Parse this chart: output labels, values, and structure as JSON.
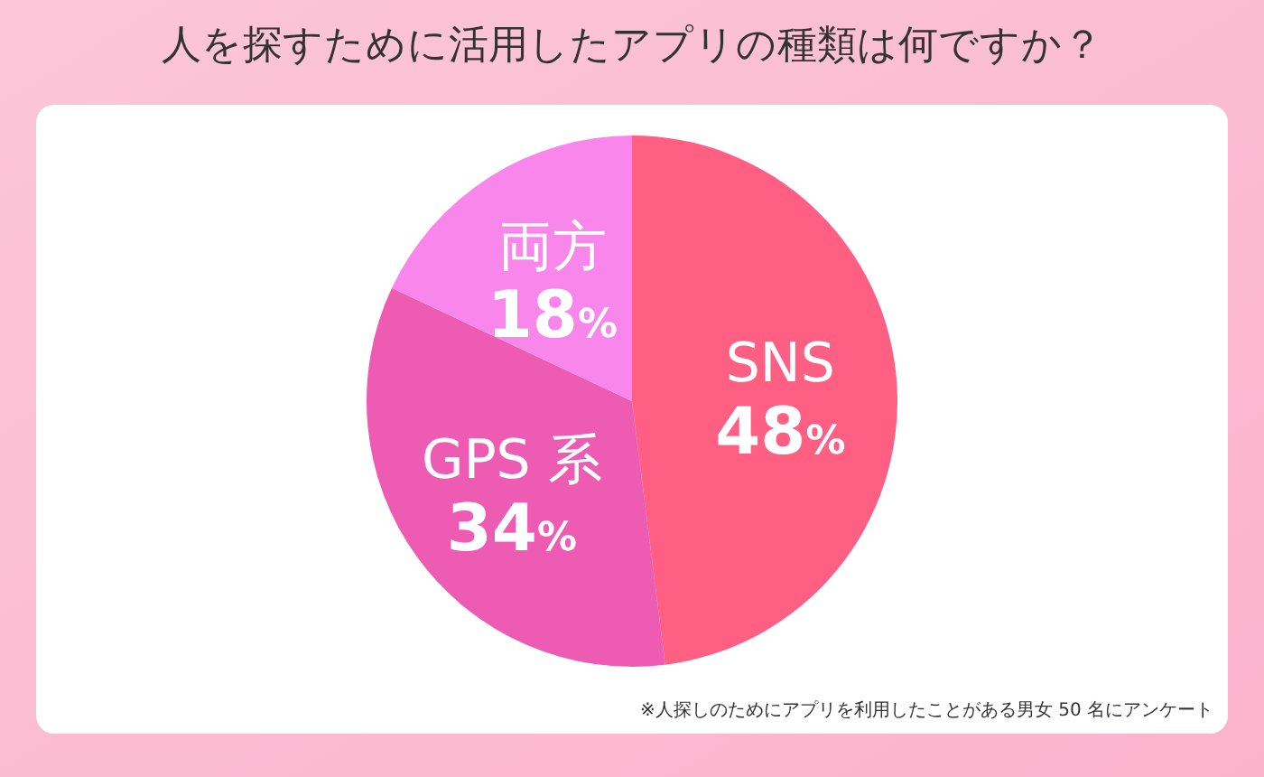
{
  "chart_data": {
    "type": "pie",
    "title": "人を探すために活用したアプリの種類は何ですか？",
    "categories": [
      "SNS",
      "GPS 系",
      "両方"
    ],
    "values": [
      48,
      34,
      18
    ],
    "value_labels": [
      "48%",
      "34%",
      "18%"
    ],
    "colors": [
      "#ff5f82",
      "#ee5bb3",
      "#f986ea"
    ],
    "annotations": [
      "※人探しのためにアプリを利用したことがある男女 50 名にアンケート"
    ]
  }
}
